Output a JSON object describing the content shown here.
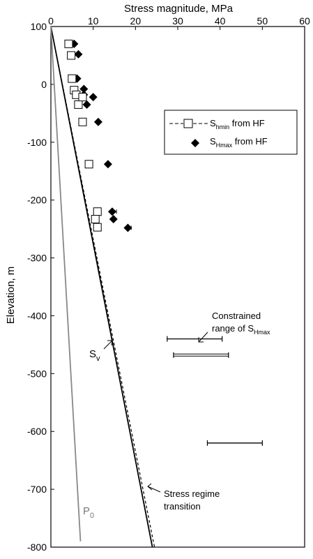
{
  "chart_data": {
    "type": "scatter",
    "title": "",
    "xlabel": "Stress magnitude, MPa",
    "ylabel": "Elevation, m",
    "xlim": [
      0,
      60
    ],
    "ylim": [
      -800,
      100
    ],
    "x_ticks": [
      "0",
      "10",
      "20",
      "30",
      "40",
      "50",
      "60"
    ],
    "y_ticks": [
      "100",
      "0",
      "-100",
      "-200",
      "-300",
      "-400",
      "-500",
      "-600",
      "-700",
      "-800"
    ],
    "legend_position": "top-right",
    "grid": false,
    "series": [
      {
        "name": "S_hmin from HF",
        "name_main": "S",
        "name_sub": "hmin",
        "name_rest": " from HF",
        "marker": "open-square",
        "points": [
          {
            "x": 4.2,
            "y": 70
          },
          {
            "x": 4.8,
            "y": 50
          },
          {
            "x": 5.0,
            "y": 10
          },
          {
            "x": 5.5,
            "y": -10
          },
          {
            "x": 6.0,
            "y": -18
          },
          {
            "x": 6.5,
            "y": -35
          },
          {
            "x": 7.5,
            "y": -22
          },
          {
            "x": 7.5,
            "y": -65
          },
          {
            "x": 9.0,
            "y": -138
          },
          {
            "x": 11.0,
            "y": -220
          },
          {
            "x": 10.5,
            "y": -233
          },
          {
            "x": 11.0,
            "y": -247
          }
        ]
      },
      {
        "name": "S_Hmax from HF",
        "name_main": "S",
        "name_sub": "Hmax",
        "name_rest": " from HF",
        "marker": "filled-diamond",
        "points": [
          {
            "x": 5.5,
            "y": 70
          },
          {
            "x": 6.5,
            "y": 52
          },
          {
            "x": 6.2,
            "y": 10
          },
          {
            "x": 7.8,
            "y": -8
          },
          {
            "x": 7.8,
            "y": -18
          },
          {
            "x": 8.5,
            "y": -35
          },
          {
            "x": 10.0,
            "y": -22
          },
          {
            "x": 11.2,
            "y": -65
          },
          {
            "x": 13.5,
            "y": -138
          },
          {
            "x": 14.5,
            "y": -220
          },
          {
            "x": 14.8,
            "y": -233
          },
          {
            "x": 18.2,
            "y": -248
          }
        ],
        "error_bars": [
          {
            "y": -220,
            "x_low": 14.0,
            "x_high": 15.5
          },
          {
            "y": -248,
            "x_low": 17.5,
            "x_high": 19.0
          }
        ]
      }
    ],
    "lines": [
      {
        "id": "shmin-trend",
        "style": "dashed",
        "points": [
          {
            "x": 0,
            "y": 100
          },
          {
            "x": 24.5,
            "y": -800
          }
        ]
      },
      {
        "id": "sv",
        "style": "solid",
        "points": [
          {
            "x": 0,
            "y": 100
          },
          {
            "x": 24.0,
            "y": -800
          }
        ]
      },
      {
        "id": "p0",
        "style": "solid-gray",
        "points": [
          {
            "x": 0,
            "y": 100
          },
          {
            "x": 7.0,
            "y": -790
          }
        ]
      }
    ],
    "ranges": [
      {
        "y": -440,
        "x_low": 27.5,
        "x_high": 40.5,
        "style": "single"
      },
      {
        "y": -468,
        "x_low": 29.0,
        "x_high": 42.0,
        "style": "double"
      },
      {
        "y": -620,
        "x_low": 37.0,
        "x_high": 50.0,
        "style": "single"
      }
    ],
    "annotations": {
      "sv": {
        "main": "S",
        "sub": "v"
      },
      "p0": {
        "main": "P",
        "sub": "0"
      },
      "constrained_line1": "Constrained",
      "constrained_line2_main": "range of S",
      "constrained_line2_sub": "Hmax",
      "transition_line1": "Stress regime",
      "transition_line2": "transition"
    }
  }
}
